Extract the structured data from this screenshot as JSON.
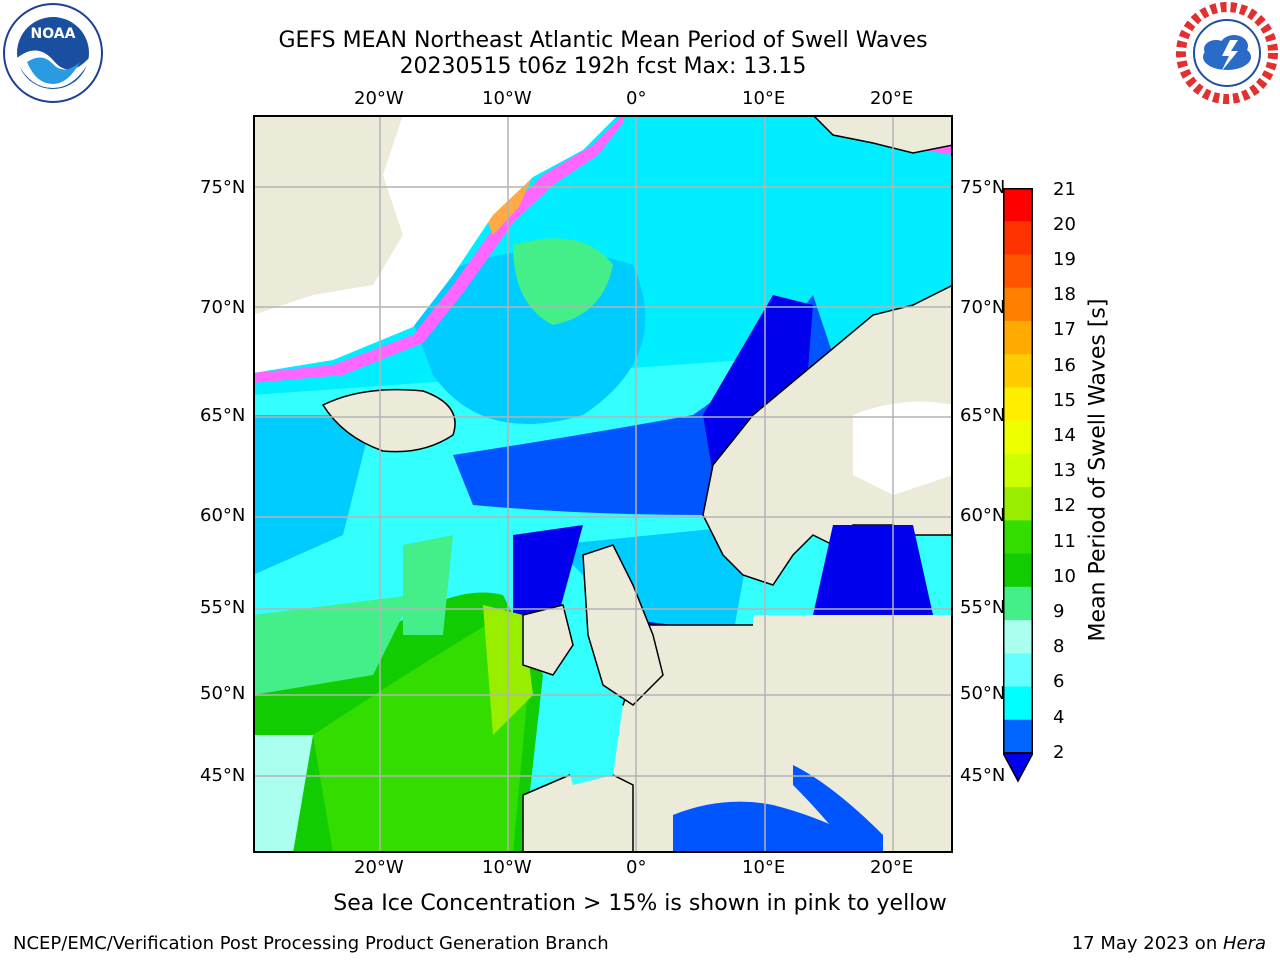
{
  "header": {
    "title_line1": "GEFS MEAN Northeast Atlantic Mean Period of Swell Waves",
    "title_line2": "20230515 t06z 192h fcst   Max: 13.15"
  },
  "logos": {
    "left": {
      "name": "noaa-logo",
      "text": "NOAA",
      "ring_text": "NATIONAL OCEANIC AND ATMOSPHERIC ADMINISTRATION · U.S. DEPARTMENT OF COMMERCE"
    },
    "right": {
      "name": "nws-logo",
      "ring_text": "NATIONAL WEATHER SERVICE"
    }
  },
  "map": {
    "lat_labels": [
      "75°N",
      "70°N",
      "65°N",
      "60°N",
      "55°N",
      "50°N",
      "45°N"
    ],
    "lon_labels": [
      "20°W",
      "10°W",
      "0°",
      "10°E",
      "20°E"
    ],
    "colors": {
      "land": "#ecebda",
      "gridline": "#b3b3b3",
      "coast": "#000000"
    }
  },
  "colorbar": {
    "label": "Mean Period of Swell Waves [s]",
    "ticks": [
      "21",
      "20",
      "19",
      "18",
      "17",
      "16",
      "15",
      "14",
      "13",
      "12",
      "11",
      "10",
      "9",
      "8",
      "6",
      "4",
      "2"
    ],
    "colors": [
      "#ff0000",
      "#ff3300",
      "#ff5500",
      "#ff7f00",
      "#ffaa00",
      "#ffcc00",
      "#ffee00",
      "#eeff00",
      "#ccff00",
      "#99ee00",
      "#33dd00",
      "#11cc00",
      "#44ee88",
      "#aaffee",
      "#66ffff",
      "#00ffff",
      "#0066ff",
      "#0000ee"
    ],
    "extend_min_color": "#0000ee"
  },
  "footer": {
    "note": "Sea Ice Concentration > 15% is shown in pink to yellow",
    "left": "NCEP/EMC/Verification Post Processing Product Generation Branch",
    "right_date": "17 May 2023 on ",
    "right_host": "Hera"
  }
}
